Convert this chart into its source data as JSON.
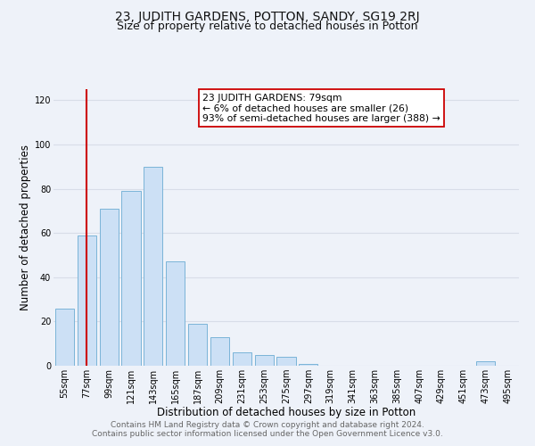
{
  "title": "23, JUDITH GARDENS, POTTON, SANDY, SG19 2RJ",
  "subtitle": "Size of property relative to detached houses in Potton",
  "xlabel": "Distribution of detached houses by size in Potton",
  "ylabel": "Number of detached properties",
  "bar_color": "#cce0f5",
  "bar_edge_color": "#7ab4d8",
  "bin_labels": [
    "55sqm",
    "77sqm",
    "99sqm",
    "121sqm",
    "143sqm",
    "165sqm",
    "187sqm",
    "209sqm",
    "231sqm",
    "253sqm",
    "275sqm",
    "297sqm",
    "319sqm",
    "341sqm",
    "363sqm",
    "385sqm",
    "407sqm",
    "429sqm",
    "451sqm",
    "473sqm",
    "495sqm"
  ],
  "bar_values": [
    26,
    59,
    71,
    79,
    90,
    47,
    19,
    13,
    6,
    5,
    4,
    1,
    0,
    0,
    0,
    0,
    0,
    0,
    0,
    2,
    0
  ],
  "vline_x": 1,
  "vline_color": "#cc0000",
  "annotation_title": "23 JUDITH GARDENS: 79sqm",
  "annotation_line1": "← 6% of detached houses are smaller (26)",
  "annotation_line2": "93% of semi-detached houses are larger (388) →",
  "annotation_box_color": "#ffffff",
  "annotation_box_edge": "#cc0000",
  "ylim": [
    0,
    125
  ],
  "yticks": [
    0,
    20,
    40,
    60,
    80,
    100,
    120
  ],
  "footer1": "Contains HM Land Registry data © Crown copyright and database right 2024.",
  "footer2": "Contains public sector information licensed under the Open Government Licence v3.0.",
  "bg_color": "#eef2f9",
  "plot_bg_color": "#eef2f9",
  "grid_color": "#d8dde8",
  "title_fontsize": 10,
  "subtitle_fontsize": 9,
  "axis_label_fontsize": 8.5,
  "tick_fontsize": 7,
  "footer_fontsize": 6.5,
  "annotation_fontsize": 7.8
}
